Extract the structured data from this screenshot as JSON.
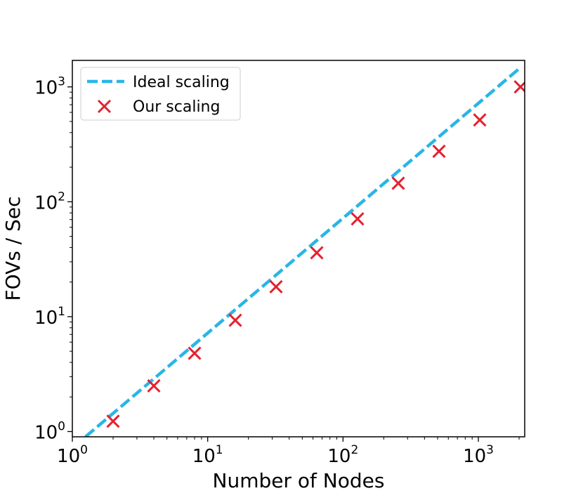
{
  "chart_data": {
    "type": "line",
    "title": "",
    "xlabel": "Number of Nodes",
    "ylabel": "FOVs / Sec",
    "xscale": "log",
    "yscale": "log",
    "xlim": [
      1,
      2200
    ],
    "ylim": [
      0.9,
      1700
    ],
    "x_ticks": [
      {
        "base": "10",
        "exp": "0",
        "value": 1
      },
      {
        "base": "10",
        "exp": "1",
        "value": 10
      },
      {
        "base": "10",
        "exp": "2",
        "value": 100
      },
      {
        "base": "10",
        "exp": "3",
        "value": 1000
      }
    ],
    "y_ticks": [
      {
        "base": "10",
        "exp": "0",
        "value": 1
      },
      {
        "base": "10",
        "exp": "1",
        "value": 10
      },
      {
        "base": "10",
        "exp": "2",
        "value": 100
      },
      {
        "base": "10",
        "exp": "3",
        "value": 1000
      }
    ],
    "grid": false,
    "legend_position": "upper-left",
    "series": [
      {
        "name": "Ideal scaling",
        "kind": "dashed-line",
        "color": "#29B5E8",
        "x": [
          1.25,
          2048
        ],
        "y": [
          0.9,
          1474
        ]
      },
      {
        "name": "Our scaling",
        "kind": "x-markers",
        "color": "#E5202F",
        "x": [
          2,
          4,
          8,
          16,
          32,
          64,
          128,
          256,
          512,
          1024,
          2048
        ],
        "y": [
          1.23,
          2.5,
          4.8,
          9.3,
          18.2,
          36,
          71,
          145,
          275,
          515,
          1000
        ]
      }
    ]
  }
}
